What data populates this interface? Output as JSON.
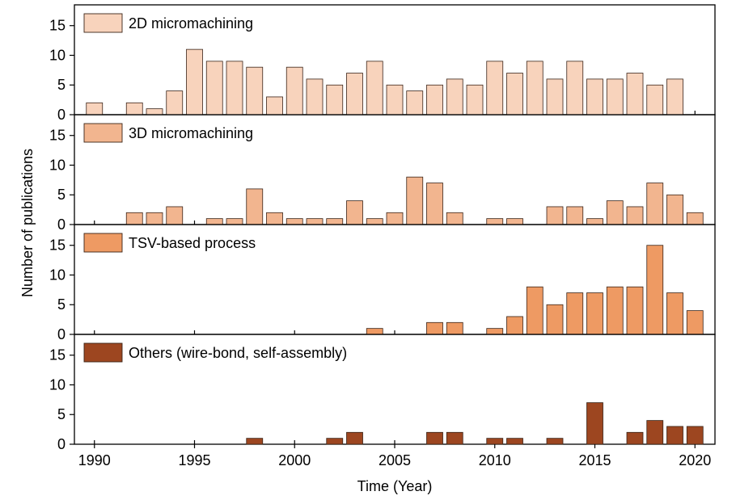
{
  "chart_data": {
    "type": "bar",
    "xlabel": "Time (Year)",
    "ylabel": "Number of publications",
    "xlim": [
      1989,
      2021
    ],
    "ylim": [
      0,
      18.5
    ],
    "x_ticks": [
      1990,
      1995,
      2000,
      2005,
      2010,
      2015,
      2020
    ],
    "y_ticks": [
      0,
      5,
      10,
      15
    ],
    "x": [
      1990,
      1991,
      1992,
      1993,
      1994,
      1995,
      1996,
      1997,
      1998,
      1999,
      2000,
      2001,
      2002,
      2003,
      2004,
      2005,
      2006,
      2007,
      2008,
      2009,
      2010,
      2011,
      2012,
      2013,
      2014,
      2015,
      2016,
      2017,
      2018,
      2019,
      2020
    ],
    "legend_position": "top-left",
    "grid": false,
    "panels": [
      {
        "name": "2D micromachining",
        "color": "#F8D3BC",
        "values": [
          2,
          0,
          2,
          1,
          4,
          11,
          9,
          9,
          8,
          3,
          8,
          6,
          5,
          7,
          9,
          5,
          4,
          5,
          6,
          5,
          9,
          7,
          9,
          6,
          9,
          6,
          6,
          7,
          5,
          6,
          0
        ]
      },
      {
        "name": "3D micromachining",
        "color": "#F2B58F",
        "values": [
          0,
          0,
          2,
          2,
          3,
          0,
          1,
          1,
          6,
          2,
          1,
          1,
          1,
          4,
          1,
          2,
          8,
          7,
          2,
          0,
          1,
          1,
          0,
          3,
          3,
          1,
          4,
          3,
          7,
          5,
          2
        ]
      },
      {
        "name": "TSV-based process",
        "color": "#EE9A63",
        "values": [
          0,
          0,
          0,
          0,
          0,
          0,
          0,
          0,
          0,
          0,
          0,
          0,
          0,
          0,
          1,
          0,
          0,
          2,
          2,
          0,
          1,
          3,
          8,
          5,
          7,
          7,
          8,
          8,
          15,
          7,
          4
        ]
      },
      {
        "name": "Others (wire-bond, self-assembly)",
        "color": "#9D4620",
        "values": [
          0,
          0,
          0,
          0,
          0,
          0,
          0,
          0,
          1,
          0,
          0,
          0,
          1,
          2,
          0,
          0,
          0,
          2,
          2,
          0,
          1,
          1,
          0,
          1,
          0,
          7,
          0,
          2,
          4,
          3,
          3
        ]
      }
    ]
  }
}
